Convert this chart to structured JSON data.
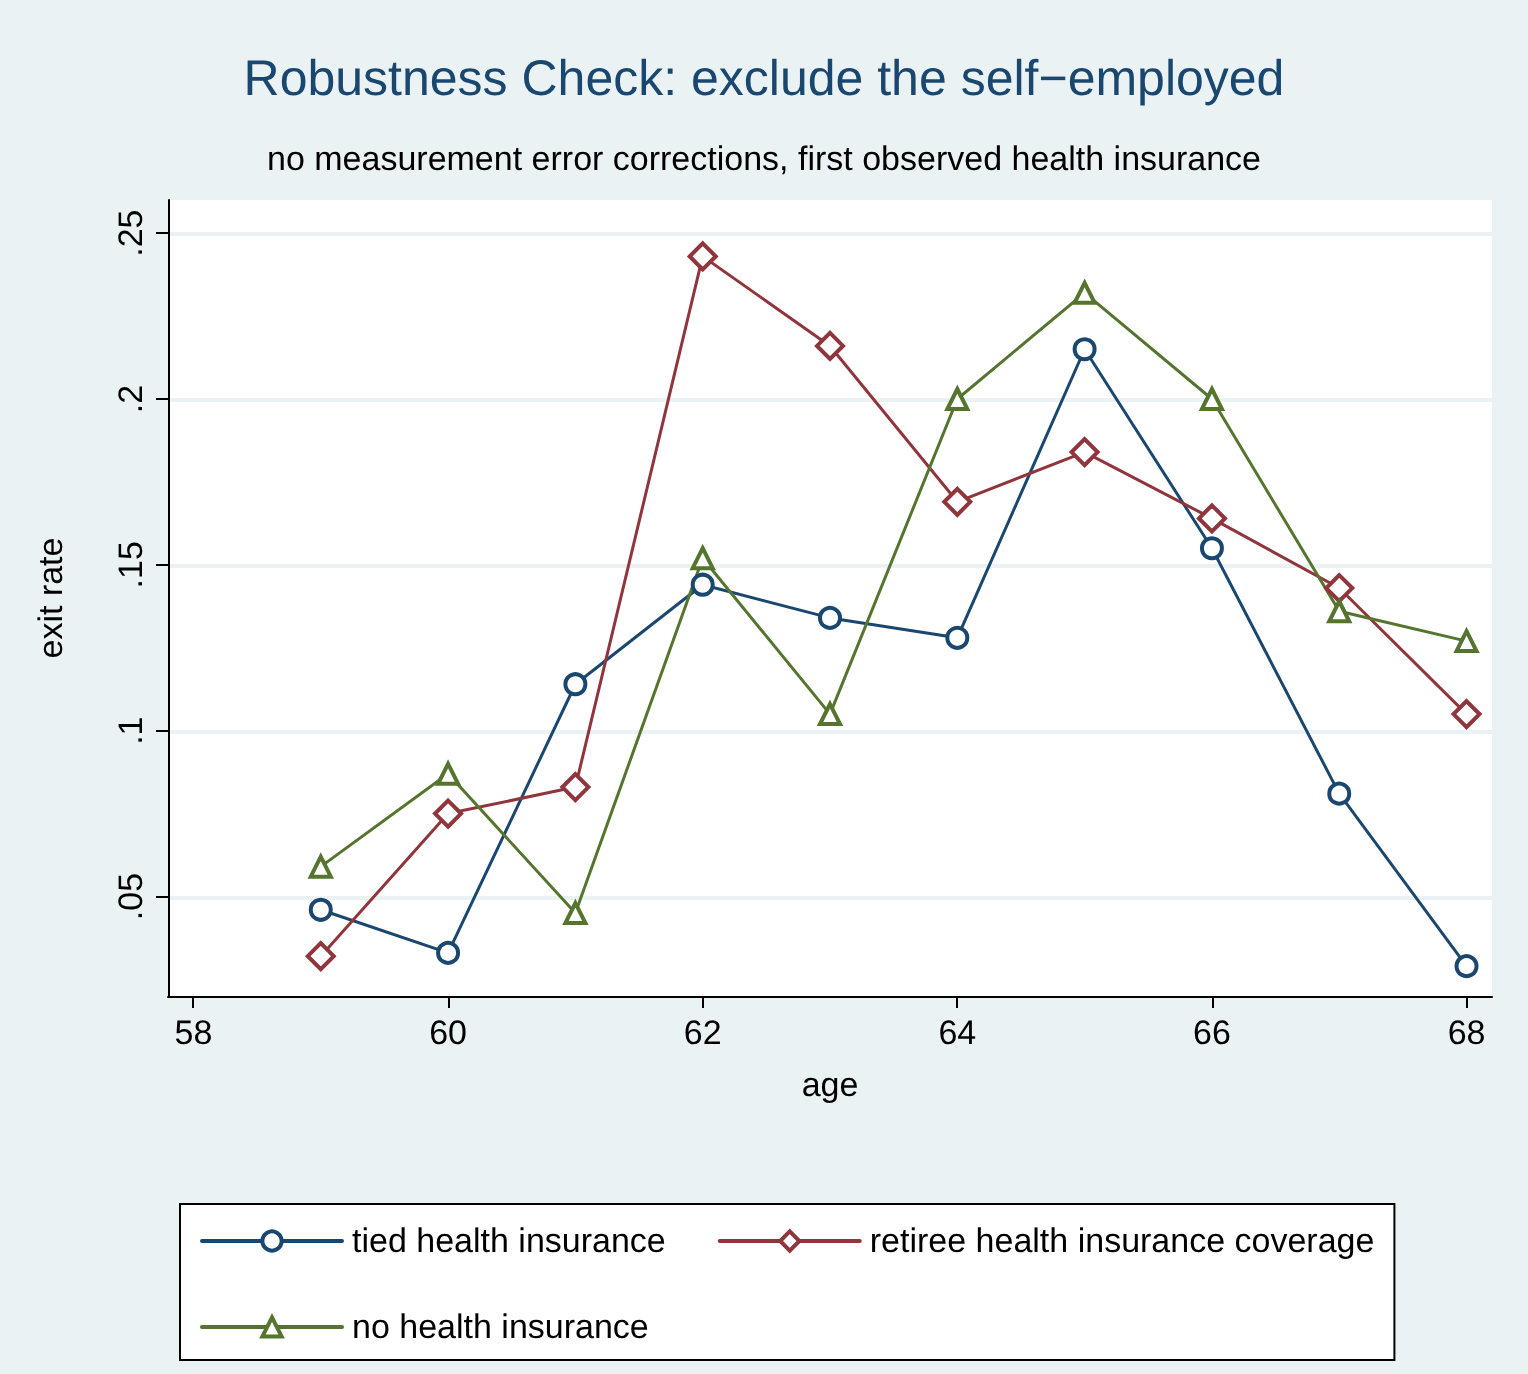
{
  "chart_data": {
    "type": "line",
    "title": "Robustness Check: exclude the self−employed",
    "subtitle": "no measurement error corrections, first observed health insurance",
    "xlabel": "age",
    "ylabel": "exit rate",
    "x": [
      59,
      60,
      61,
      62,
      63,
      64,
      65,
      66,
      67,
      68
    ],
    "series": [
      {
        "name": "tied health insurance",
        "color": "#1a476f",
        "marker": "circle",
        "values": [
          0.046,
          0.033,
          0.114,
          0.144,
          0.134,
          0.128,
          0.215,
          0.155,
          0.081,
          0.029
        ]
      },
      {
        "name": "retiree health insurance coverage",
        "color": "#90353b",
        "marker": "diamond",
        "values": [
          0.032,
          0.075,
          0.083,
          0.243,
          0.216,
          0.169,
          0.184,
          0.164,
          0.143,
          0.105
        ]
      },
      {
        "name": "no health insurance",
        "color": "#55752f",
        "marker": "triangle",
        "values": [
          0.059,
          0.087,
          0.045,
          0.152,
          0.105,
          0.2,
          0.232,
          0.2,
          0.136,
          0.127
        ]
      }
    ],
    "xlim": [
      57.8,
      68.2
    ],
    "xticks": [
      58,
      60,
      62,
      64,
      66,
      68
    ],
    "ylim": [
      0.02,
      0.26
    ],
    "yticks": [
      {
        "value": 0.05,
        "label": ".05"
      },
      {
        "value": 0.1,
        "label": ".1"
      },
      {
        "value": 0.15,
        "label": ".15"
      },
      {
        "value": 0.2,
        "label": ".2"
      },
      {
        "value": 0.25,
        "label": ".25"
      }
    ],
    "grid": "y",
    "legend": "bottom",
    "line_style": "solid"
  }
}
